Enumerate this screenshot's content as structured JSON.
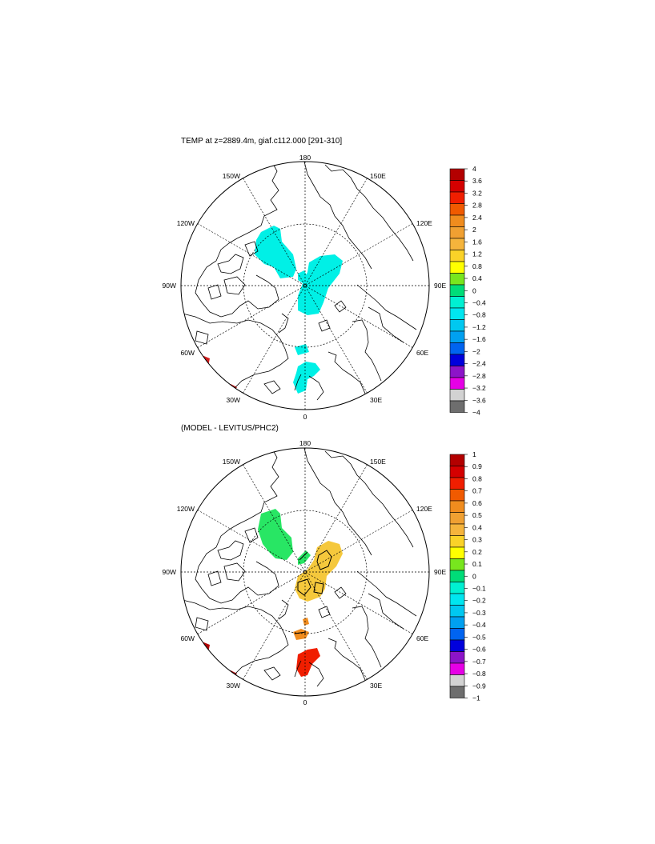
{
  "panels": [
    {
      "title": "TEMP at z=2889.4m, giaf.c112.000 [291-310]",
      "lon_labels": {
        "top": "180",
        "bottom": "0",
        "left": "90W",
        "right": "90E",
        "ul1": "150W",
        "ul2": "120W",
        "ur1": "150E",
        "ur2": "120E",
        "ll1": "60W",
        "ll2": "30W",
        "lr1": "60E",
        "lr2": "30E"
      },
      "colorbar": {
        "labels": [
          "4",
          "3.6",
          "3.2",
          "2.8",
          "2.4",
          "2",
          "1.6",
          "1.2",
          "0.8",
          "0.4",
          "0",
          "−0.4",
          "−0.8",
          "−1.2",
          "−1.6",
          "−2",
          "−2.4",
          "−2.8",
          "−3.2",
          "−3.6",
          "−4"
        ],
        "colors": [
          "#b30000",
          "#d40000",
          "#f01e00",
          "#f05a00",
          "#f08c1e",
          "#f0a032",
          "#f5b43c",
          "#fad228",
          "#ffff00",
          "#78e61e",
          "#00dc78",
          "#00f0d2",
          "#00e6f0",
          "#00c8f0",
          "#00a0f0",
          "#0064f0",
          "#0000dc",
          "#8c14c8",
          "#e600e6",
          "#d2d2d2",
          "#6e6e6e"
        ]
      }
    },
    {
      "title": "(MODEL - LEVITUS/PHC2)",
      "lon_labels": {
        "top": "180",
        "bottom": "0",
        "left": "90W",
        "right": "90E",
        "ul1": "150W",
        "ul2": "120W",
        "ur1": "150E",
        "ur2": "120E",
        "ll1": "60W",
        "ll2": "30W",
        "lr1": "60E",
        "lr2": "30E"
      },
      "colorbar": {
        "labels": [
          "1",
          "0.9",
          "0.8",
          "0.7",
          "0.6",
          "0.5",
          "0.4",
          "0.3",
          "0.2",
          "0.1",
          "0",
          "−0.1",
          "−0.2",
          "−0.3",
          "−0.4",
          "−0.5",
          "−0.6",
          "−0.7",
          "−0.8",
          "−0.9",
          "−1"
        ],
        "colors": [
          "#b30000",
          "#d40000",
          "#f01e00",
          "#f05a00",
          "#f08c1e",
          "#f0a032",
          "#f5b43c",
          "#fad228",
          "#ffff00",
          "#78e61e",
          "#00dc78",
          "#00f0d2",
          "#00e6f0",
          "#00c8f0",
          "#00a0f0",
          "#0064f0",
          "#0000dc",
          "#8c14c8",
          "#e600e6",
          "#d2d2d2",
          "#6e6e6e"
        ]
      }
    }
  ],
  "fill_colors": {
    "p1_anomaly": "#00f0e6",
    "p1_warm_edge": "#d41e1e",
    "p2_green": "#28e664",
    "p2_yellow": "#f5c83c",
    "p2_orange": "#f08c1e",
    "p2_red": "#f01e00",
    "p2_warm_edge": "#b30000"
  }
}
